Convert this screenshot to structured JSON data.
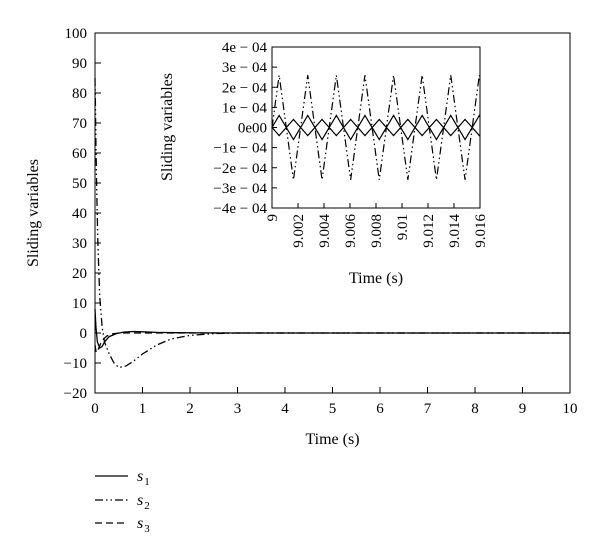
{
  "chart_data": [
    {
      "id": "main",
      "type": "line",
      "xlabel": "Time (s)",
      "ylabel": "Sliding variables",
      "xlim": [
        0,
        10
      ],
      "ylim": [
        -20,
        100
      ],
      "xticks": [
        "0",
        "1",
        "2",
        "3",
        "4",
        "5",
        "6",
        "7",
        "8",
        "9",
        "10"
      ],
      "yticks": [
        "100",
        "90",
        "80",
        "70",
        "60",
        "50",
        "40",
        "30",
        "20",
        "10",
        "0",
        "−10",
        "−20"
      ],
      "grid": false,
      "series": [
        {
          "name": "s1",
          "style": "solid",
          "x": [
            0,
            0.02,
            0.05,
            0.1,
            0.15,
            0.2,
            0.3,
            0.45,
            0.6,
            0.8,
            1.0,
            1.3,
            1.7,
            2.2,
            3,
            5,
            10
          ],
          "y": [
            8,
            2,
            -3,
            -5,
            -4.5,
            -3,
            -1.2,
            -0.2,
            0.3,
            0.5,
            0.4,
            0.2,
            0.1,
            0.05,
            0,
            0,
            0
          ]
        },
        {
          "name": "s2",
          "style": "dashdotdot",
          "x": [
            0,
            0.01,
            0.02,
            0.04,
            0.06,
            0.1,
            0.15,
            0.2,
            0.3,
            0.4,
            0.5,
            0.65,
            0.8,
            1.0,
            1.3,
            1.6,
            2.0,
            2.5,
            3.0,
            4,
            5,
            10
          ],
          "y": [
            85,
            75,
            62,
            45,
            30,
            12,
            2,
            -3,
            -7,
            -10,
            -11.5,
            -11,
            -9.5,
            -7,
            -4,
            -2,
            -0.8,
            -0.2,
            0,
            0,
            0,
            0
          ]
        },
        {
          "name": "s3",
          "style": "dashed",
          "x": [
            0,
            0.02,
            0.04,
            0.08,
            0.12,
            0.18,
            0.25,
            0.35,
            0.5,
            0.7,
            1.0,
            1.5,
            2.0,
            3.0,
            5,
            10
          ],
          "y": [
            -4,
            -6,
            -6.5,
            -5,
            -3.5,
            -2,
            -1,
            -0.3,
            0,
            0,
            0,
            0,
            0,
            0,
            0,
            0
          ]
        }
      ]
    },
    {
      "id": "inset",
      "type": "line",
      "xlabel": "Time (s)",
      "ylabel": "Sliding variables",
      "xlim": [
        9,
        9.016
      ],
      "ylim": [
        -0.0004,
        0.0004
      ],
      "xticks": [
        "9",
        "9.002",
        "9.004",
        "9.006",
        "9.008",
        "9.01",
        "9.012",
        "9.014",
        "9.016"
      ],
      "yticks": [
        "4e − 04",
        "3e − 04",
        "2e − 04",
        "1e − 04",
        "0e00",
        "−1e − 04",
        "−2e − 04",
        "−3e − 04",
        "−4e − 04"
      ],
      "grid": false,
      "series": [
        {
          "name": "s1",
          "style": "solid",
          "amplitude": 6e-05,
          "period": 0.0022,
          "phase": 0
        },
        {
          "name": "s2",
          "style": "dashdotdot",
          "amplitude": 0.00026,
          "period": 0.0022,
          "phase": 0
        },
        {
          "name": "s3",
          "style": "solid",
          "amplitude": 4e-05,
          "period": 0.0022,
          "phase": 3.14159
        }
      ]
    }
  ],
  "legend": {
    "placement": "below-left",
    "items": [
      {
        "symbol": "s",
        "sub": "1",
        "style": "solid"
      },
      {
        "symbol": "s",
        "sub": "2",
        "style": "dashdotdot"
      },
      {
        "symbol": "s",
        "sub": "3",
        "style": "dashed"
      }
    ]
  }
}
